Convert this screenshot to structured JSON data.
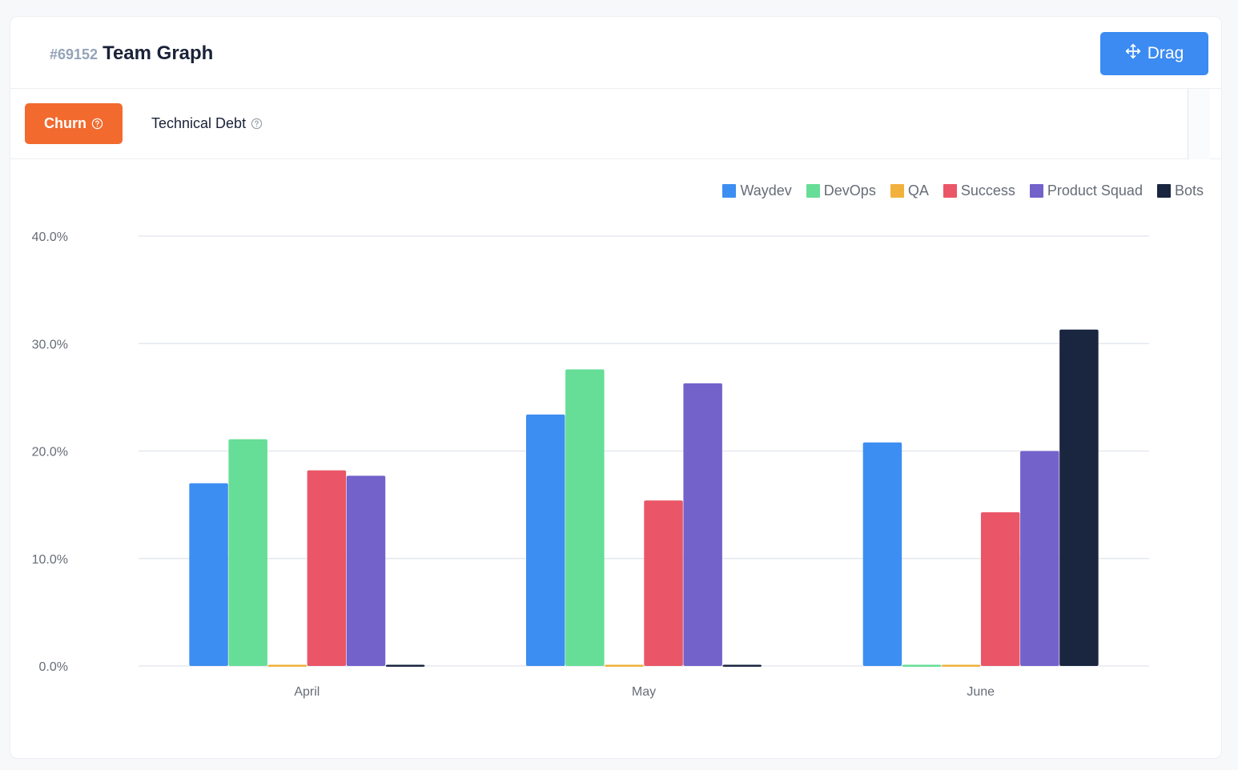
{
  "header": {
    "id": "#69152",
    "title": "Team Graph",
    "drag_label": "Drag"
  },
  "tabs": [
    {
      "label": "Churn",
      "active": true
    },
    {
      "label": "Technical Debt",
      "active": false
    }
  ],
  "colors": {
    "accent": "#3b8bf2",
    "active_tab": "#f26a2e"
  },
  "chart_data": {
    "type": "bar",
    "categories": [
      "April",
      "May",
      "June"
    ],
    "ylim": [
      0,
      40
    ],
    "yticks": [
      "0.0%",
      "10.0%",
      "20.0%",
      "30.0%",
      "40.0%"
    ],
    "grid": true,
    "legend_position": "top-right",
    "series": [
      {
        "name": "Waydev",
        "color": "#3d8ef2",
        "values": [
          17.0,
          23.4,
          20.8
        ]
      },
      {
        "name": "DevOps",
        "color": "#66de97",
        "values": [
          21.1,
          27.6,
          0
        ]
      },
      {
        "name": "QA",
        "color": "#f2b13c",
        "values": [
          0,
          0,
          0
        ]
      },
      {
        "name": "Success",
        "color": "#ea5667",
        "values": [
          18.2,
          15.4,
          14.3
        ]
      },
      {
        "name": "Product Squad",
        "color": "#7462cb",
        "values": [
          17.7,
          26.3,
          20.0
        ]
      },
      {
        "name": "Bots",
        "color": "#1a2640",
        "values": [
          0,
          0,
          31.3
        ]
      }
    ]
  }
}
